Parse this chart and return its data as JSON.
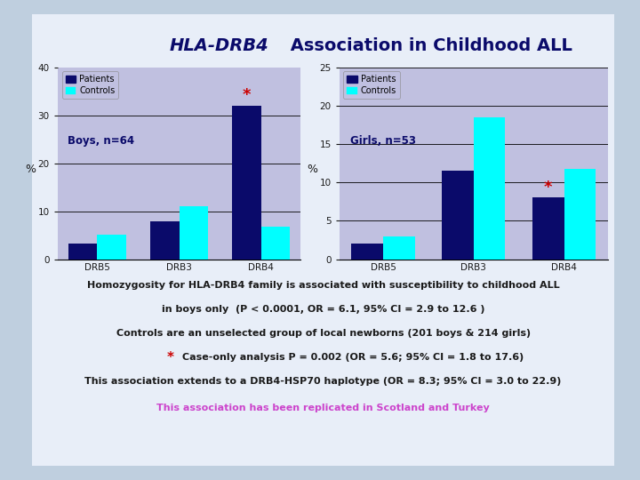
{
  "title_italic": "HLA-DRB4",
  "title_rest": " Association in Childhood ALL",
  "background_outer": "#bfcfdf",
  "background_inner": "#e8eef8",
  "plot_bg": "#c0c0e0",
  "patient_color": "#0a0a6a",
  "control_color": "#00ffff",
  "boys": {
    "label": "Boys, n=64",
    "categories": [
      "DRB5",
      "DRB3",
      "DRB4"
    ],
    "patients": [
      3.2,
      7.8,
      32.0
    ],
    "controls": [
      5.2,
      11.0,
      6.8
    ],
    "ylim": [
      0,
      40
    ],
    "yticks": [
      0,
      10,
      20,
      30,
      40
    ],
    "hlines": [
      10,
      20,
      30
    ]
  },
  "girls": {
    "label": "Girls, n=53",
    "categories": [
      "DRB5",
      "DRB3",
      "DRB4"
    ],
    "patients": [
      2.0,
      11.5,
      8.0
    ],
    "controls": [
      3.0,
      18.5,
      11.8
    ],
    "ylim": [
      0,
      25
    ],
    "yticks": [
      0,
      5,
      10,
      15,
      20,
      25
    ],
    "hlines": [
      5,
      10,
      15,
      20,
      25
    ]
  },
  "line1": "Homozygosity for HLA-DRB4 family is associated with susceptibility to childhood ALL",
  "line2": "in boys only  (P < 0.0001, OR = 6.1, 95% CI = 2.9 to 12.6 )",
  "line3": "Controls are an unselected group of local newborns (201 boys & 214 girls)",
  "line4_rest": "Case-only analysis P = 0.002 (OR = 5.6; 95% CI = 1.8 to 17.6)",
  "line5": "This association extends to a DRB4-HSP70 haplotype (OR = 8.3; 95% CI = 3.0 to 22.9)",
  "line6": "This association has been replicated in Scotland and Turkey",
  "line6_color": "#cc44cc",
  "text_color": "#1a1a1a",
  "star_color": "#cc0000",
  "title_color": "#0a0a6a"
}
